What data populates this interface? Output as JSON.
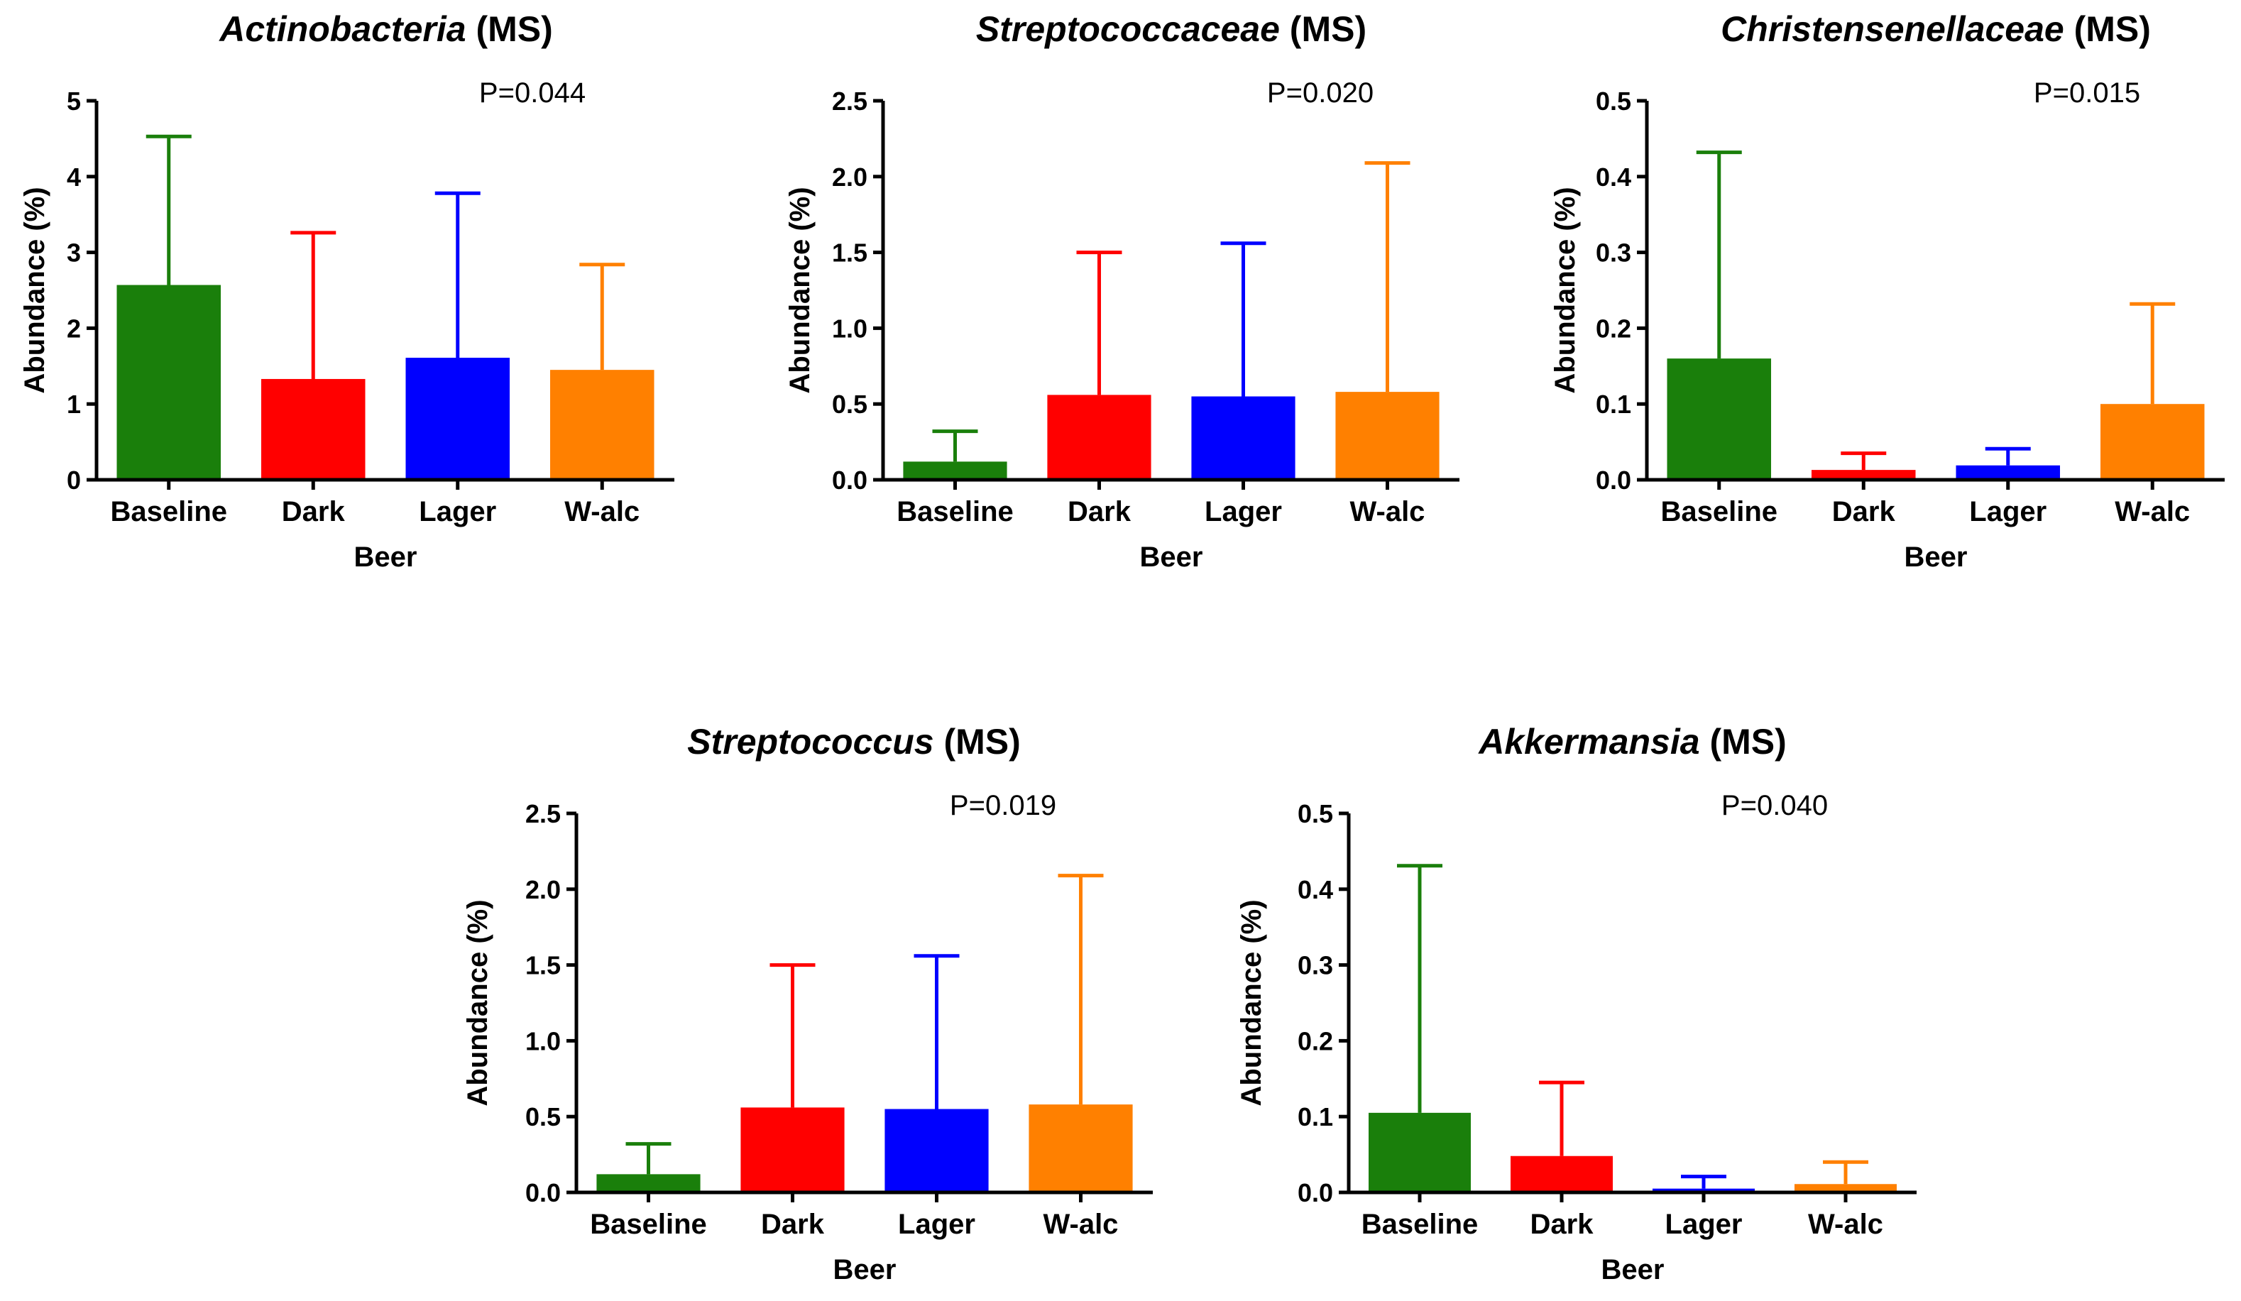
{
  "chart_data": [
    {
      "type": "bar",
      "title_italic": "Actinobacteria",
      "title_suffix": " (MS)",
      "p_value": "P=0.044",
      "xlabel": "Beer",
      "ylabel": "Abundance (%)",
      "ylim": [
        0,
        5
      ],
      "yticks": [
        0,
        1,
        2,
        3,
        4,
        5
      ],
      "ytick_labels": [
        "0",
        "1",
        "2",
        "3",
        "4",
        "5"
      ],
      "categories": [
        "Baseline",
        "Dark",
        "Lager",
        "W-alc"
      ],
      "values": [
        2.57,
        1.33,
        1.61,
        1.45
      ],
      "errors": [
        4.53,
        3.26,
        3.78,
        2.84
      ],
      "colors": [
        "#1a7f0b",
        "#ff0000",
        "#0000ff",
        "#ff8000"
      ]
    },
    {
      "type": "bar",
      "title_italic": "Streptococcaceae",
      "title_suffix": " (MS)",
      "p_value": "P=0.020",
      "xlabel": "Beer",
      "ylabel": "Abundance (%)",
      "ylim": [
        0,
        2.5
      ],
      "yticks": [
        0,
        0.5,
        1.0,
        1.5,
        2.0,
        2.5
      ],
      "ytick_labels": [
        "0.0",
        "0.5",
        "1.0",
        "1.5",
        "2.0",
        "2.5"
      ],
      "categories": [
        "Baseline",
        "Dark",
        "Lager",
        "W-alc"
      ],
      "values": [
        0.12,
        0.56,
        0.55,
        0.58
      ],
      "errors": [
        0.32,
        1.5,
        1.56,
        2.09
      ],
      "colors": [
        "#1a7f0b",
        "#ff0000",
        "#0000ff",
        "#ff8000"
      ]
    },
    {
      "type": "bar",
      "title_italic": "Christensenellaceae",
      "title_suffix": " (MS)",
      "p_value": "P=0.015",
      "xlabel": "Beer",
      "ylabel": "Abundance (%)",
      "ylim": [
        0,
        0.5
      ],
      "yticks": [
        0,
        0.1,
        0.2,
        0.3,
        0.4,
        0.5
      ],
      "ytick_labels": [
        "0.0",
        "0.1",
        "0.2",
        "0.3",
        "0.4",
        "0.5"
      ],
      "categories": [
        "Baseline",
        "Dark",
        "Lager",
        "W-alc"
      ],
      "values": [
        0.16,
        0.013,
        0.019,
        0.1
      ],
      "errors": [
        0.432,
        0.035,
        0.041,
        0.232
      ],
      "colors": [
        "#1a7f0b",
        "#ff0000",
        "#0000ff",
        "#ff8000"
      ]
    },
    {
      "type": "bar",
      "title_italic": "Streptococcus",
      "title_suffix": " (MS)",
      "p_value": "P=0.019",
      "xlabel": "Beer",
      "ylabel": "Abundance (%)",
      "ylim": [
        0,
        2.5
      ],
      "yticks": [
        0,
        0.5,
        1.0,
        1.5,
        2.0,
        2.5
      ],
      "ytick_labels": [
        "0.0",
        "0.5",
        "1.0",
        "1.5",
        "2.0",
        "2.5"
      ],
      "categories": [
        "Baseline",
        "Dark",
        "Lager",
        "W-alc"
      ],
      "values": [
        0.12,
        0.56,
        0.55,
        0.58
      ],
      "errors": [
        0.32,
        1.5,
        1.56,
        2.09
      ],
      "colors": [
        "#1a7f0b",
        "#ff0000",
        "#0000ff",
        "#ff8000"
      ]
    },
    {
      "type": "bar",
      "title_italic": "Akkermansia",
      "title_suffix": " (MS)",
      "p_value": "P=0.040",
      "xlabel": "Beer",
      "ylabel": "Abundance (%)",
      "ylim": [
        0,
        0.5
      ],
      "yticks": [
        0,
        0.1,
        0.2,
        0.3,
        0.4,
        0.5
      ],
      "ytick_labels": [
        "0.0",
        "0.1",
        "0.2",
        "0.3",
        "0.4",
        "0.5"
      ],
      "categories": [
        "Baseline",
        "Dark",
        "Lager",
        "W-alc"
      ],
      "values": [
        0.105,
        0.048,
        0.005,
        0.011
      ],
      "errors": [
        0.431,
        0.145,
        0.021,
        0.04
      ],
      "colors": [
        "#1a7f0b",
        "#ff0000",
        "#0000ff",
        "#ff8000"
      ]
    }
  ]
}
